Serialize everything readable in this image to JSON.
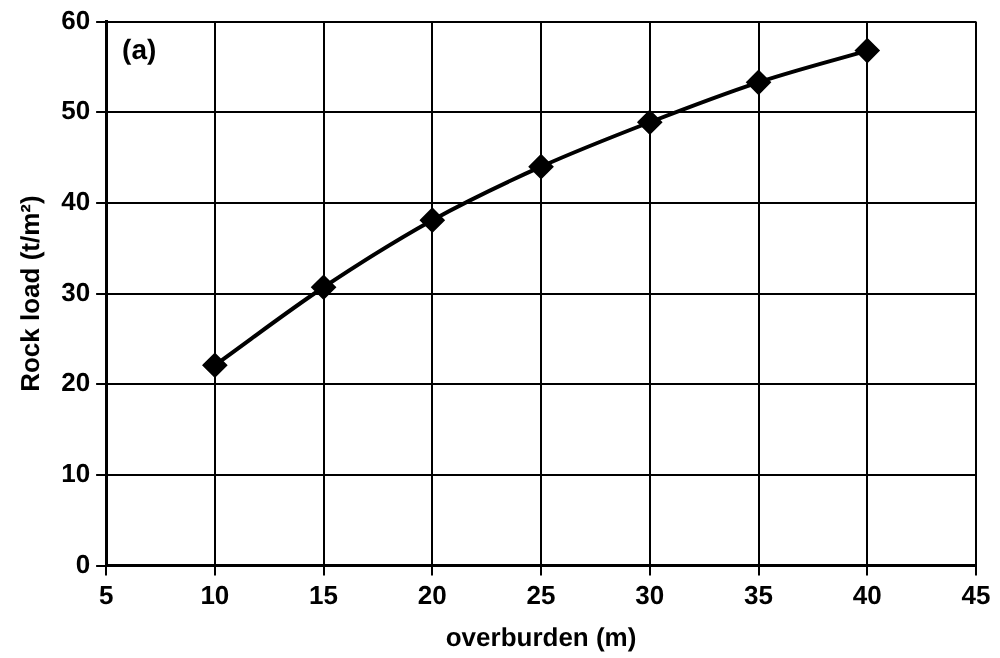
{
  "chart_data": {
    "type": "line",
    "xlabel": "overburden (m)",
    "ylabel": "Rock load (t/m²)",
    "annotations": [
      "(a)"
    ],
    "x": [
      10,
      15,
      20,
      25,
      30,
      35,
      40
    ],
    "series": [
      {
        "color": "#000000",
        "values": [
          22.1,
          30.7,
          38.1,
          44.0,
          48.9,
          53.3,
          56.8
        ]
      }
    ],
    "xlim": [
      5,
      45
    ],
    "xticks": [
      5,
      10,
      15,
      20,
      25,
      30,
      35,
      40,
      45
    ],
    "ylim": [
      0,
      60
    ],
    "yticks": [
      0,
      10,
      20,
      30,
      40,
      50,
      60
    ],
    "grid": true,
    "legend": false,
    "marker": "diamond",
    "line_style": "solid"
  }
}
